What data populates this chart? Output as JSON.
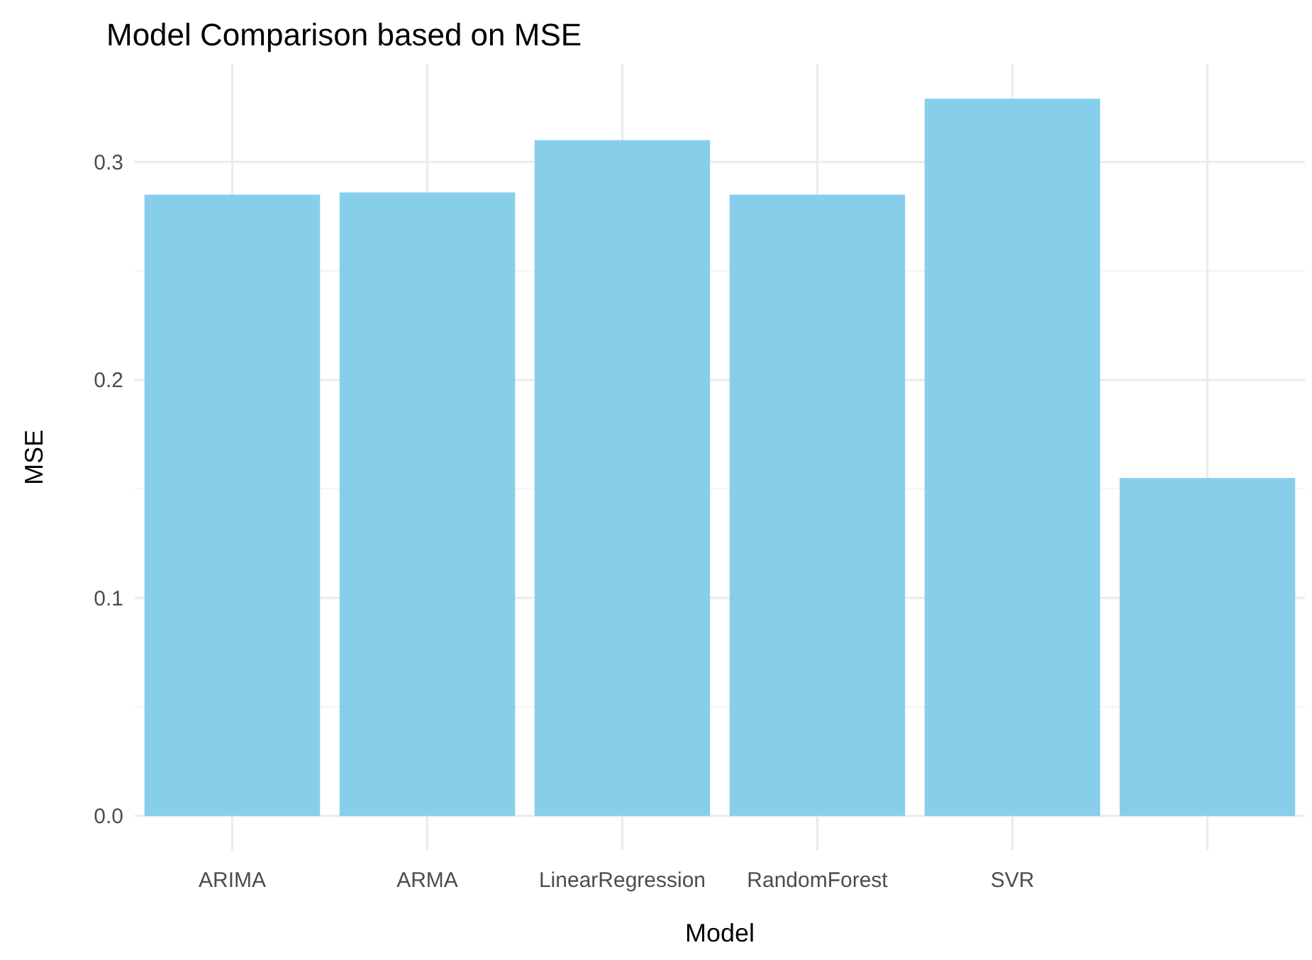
{
  "chart_data": {
    "type": "bar",
    "title": "Model Comparison based on MSE",
    "xlabel": "Model",
    "ylabel": "MSE",
    "categories": [
      "ARIMA",
      "ARMA",
      "LinearRegression",
      "RandomForest",
      "SVR",
      null
    ],
    "values": [
      0.285,
      0.286,
      0.31,
      0.285,
      0.329,
      0.155
    ],
    "color": "#87ceeb",
    "ylim": [
      -0.016,
      0.345
    ],
    "yticks": [
      {
        "value": 0,
        "label": "0.0"
      },
      {
        "value": 0.1,
        "label": "0.1"
      },
      {
        "value": 0.2,
        "label": "0.2"
      },
      {
        "value": 0.3,
        "label": "0.3"
      }
    ],
    "grid": true
  }
}
